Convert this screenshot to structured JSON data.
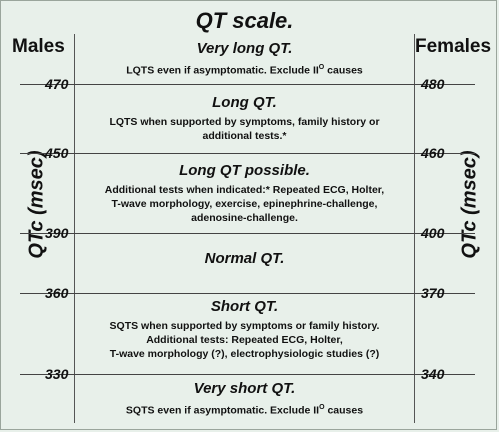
{
  "title": "QT scale.",
  "left_header": "Males",
  "right_header": "Females",
  "axis_label_left": "QTc (msec)",
  "axis_label_right": "QTc (msec)",
  "thresholds": [
    {
      "males": "470",
      "females": "480"
    },
    {
      "males": "450",
      "females": "460"
    },
    {
      "males": "390",
      "females": "400"
    },
    {
      "males": "360",
      "females": "370"
    },
    {
      "males": "330",
      "females": "340"
    }
  ],
  "bands": [
    {
      "title": "Very long QT.",
      "lines": [
        "LQTS even if asymptomatic. Exclude II",
        "causes"
      ],
      "sup": "O"
    },
    {
      "title": "Long QT.",
      "lines": [
        "LQTS when supported by symptoms, family history or",
        "additional tests.*"
      ]
    },
    {
      "title": "Long QT possible.",
      "lines": [
        "Additional tests when indicated:* Repeated ECG, Holter,",
        "T-wave morphology, exercise, epinephrine-challenge,",
        "adenosine-challenge."
      ]
    },
    {
      "title": "Normal QT.",
      "lines": []
    },
    {
      "title": "Short QT.",
      "lines": [
        "SQTS when supported by symptoms or family history.",
        "Additional tests: Repeated ECG, Holter,",
        "T-wave morphology (?), electrophysiologic studies (?)"
      ]
    },
    {
      "title": "Very short QT.",
      "lines": [
        "SQTS even if asymptomatic. Exclude II",
        "causes"
      ],
      "sup": "O"
    }
  ]
}
